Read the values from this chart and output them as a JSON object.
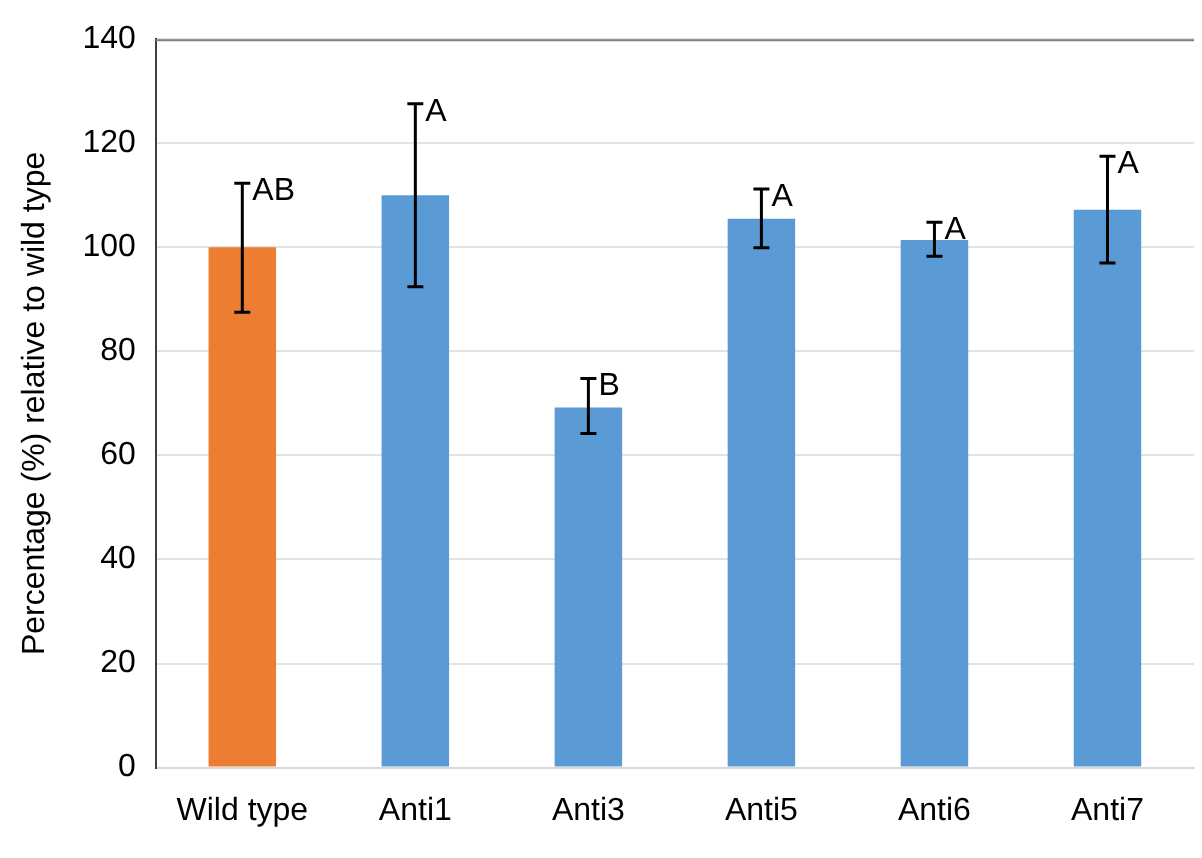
{
  "chart_data": {
    "type": "bar",
    "ylabel": "Percentage (%) relative to wild type",
    "categories": [
      "Wild type",
      "Anti1",
      "Anti3",
      "Anti5",
      "Anti6",
      "Anti7"
    ],
    "values": [
      100,
      110,
      69.2,
      105.5,
      101.4,
      107.2
    ],
    "colors": [
      "#ed7d31",
      "#5b9bd5",
      "#5b9bd5",
      "#5b9bd5",
      "#5b9bd5",
      "#5b9bd5"
    ],
    "errors": [
      [
        87.5,
        112.3
      ],
      [
        92.4,
        127.6
      ],
      [
        64.2,
        74.8
      ],
      [
        99.9,
        111.2
      ],
      [
        98.3,
        104.8
      ],
      [
        97,
        117.5
      ]
    ],
    "ylim": [
      0,
      140
    ],
    "yticks": [
      0,
      20,
      40,
      60,
      80,
      100,
      120,
      140
    ],
    "grid": "y",
    "legend": false,
    "annotations": [
      {
        "text": "AB",
        "x": "Wild type",
        "y": 112.3
      },
      {
        "text": "A",
        "x": "Anti1",
        "y": 127.6
      },
      {
        "text": "B",
        "x": "Anti3",
        "y": 74.8
      },
      {
        "text": "A",
        "x": "Anti5",
        "y": 111.2
      },
      {
        "text": "A",
        "x": "Anti6",
        "y": 104.8
      },
      {
        "text": "A",
        "x": "Anti7",
        "y": 117.5
      }
    ]
  }
}
